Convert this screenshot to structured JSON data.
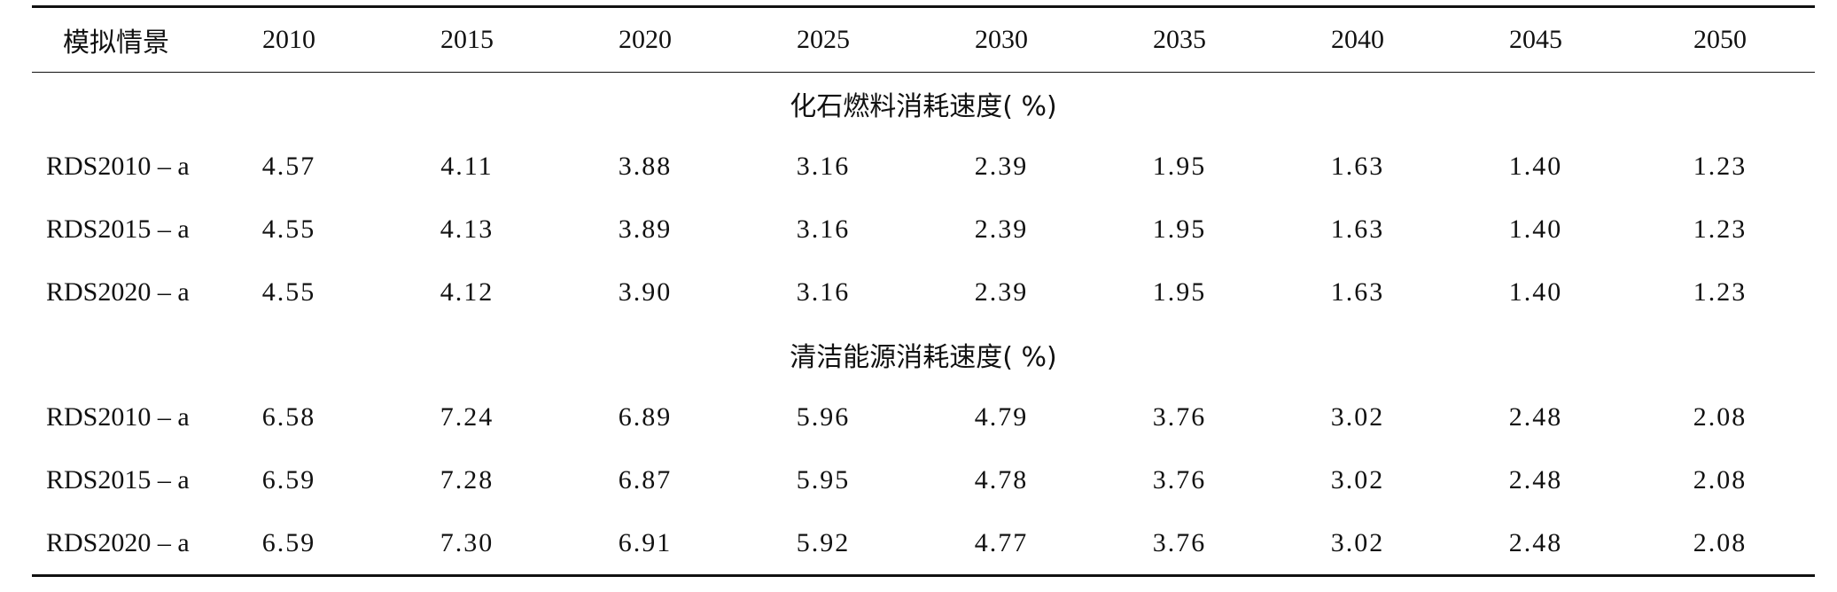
{
  "table": {
    "header": {
      "scenario": "模拟情景",
      "years": [
        "2010",
        "2015",
        "2020",
        "2025",
        "2030",
        "2035",
        "2040",
        "2045",
        "2050"
      ]
    },
    "sections": [
      {
        "title": "化石燃料消耗速度( %)",
        "rows": [
          {
            "label": "RDS2010 – a",
            "values": [
              "4.57",
              "4.11",
              "3.88",
              "3.16",
              "2.39",
              "1.95",
              "1.63",
              "1.40",
              "1.23"
            ]
          },
          {
            "label": "RDS2015 – a",
            "values": [
              "4.55",
              "4.13",
              "3.89",
              "3.16",
              "2.39",
              "1.95",
              "1.63",
              "1.40",
              "1.23"
            ]
          },
          {
            "label": "RDS2020 – a",
            "values": [
              "4.55",
              "4.12",
              "3.90",
              "3.16",
              "2.39",
              "1.95",
              "1.63",
              "1.40",
              "1.23"
            ]
          }
        ]
      },
      {
        "title": "清洁能源消耗速度( %)",
        "rows": [
          {
            "label": "RDS2010 – a",
            "values": [
              "6.58",
              "7.24",
              "6.89",
              "5.96",
              "4.79",
              "3.76",
              "3.02",
              "2.48",
              "2.08"
            ]
          },
          {
            "label": "RDS2015 – a",
            "values": [
              "6.59",
              "7.28",
              "6.87",
              "5.95",
              "4.78",
              "3.76",
              "3.02",
              "2.48",
              "2.08"
            ]
          },
          {
            "label": "RDS2020 – a",
            "values": [
              "6.59",
              "7.30",
              "6.91",
              "5.92",
              "4.77",
              "3.76",
              "3.02",
              "2.48",
              "2.08"
            ]
          }
        ]
      }
    ]
  }
}
